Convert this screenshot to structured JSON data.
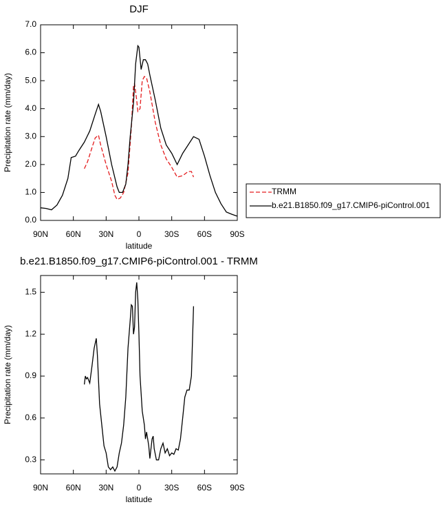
{
  "chart_data": [
    {
      "type": "line",
      "title": "DJF",
      "xlabel": "latitude",
      "ylabel": "Precipitation rate (mm/day)",
      "xlim": [
        90,
        -90
      ],
      "xticks": [
        {
          "value": 90,
          "label": "90N"
        },
        {
          "value": 60,
          "label": "60N"
        },
        {
          "value": 30,
          "label": "30N"
        },
        0,
        {
          "value": -30,
          "label": "30S"
        },
        {
          "value": -60,
          "label": "60S"
        },
        {
          "value": -90,
          "label": "90S"
        }
      ],
      "ylim": [
        0,
        7
      ],
      "yticks": [
        {
          "value": 0,
          "label": "0.0"
        },
        {
          "value": 1,
          "label": "1.0"
        },
        {
          "value": 2,
          "label": "2.0"
        },
        {
          "value": 3,
          "label": "3.0"
        },
        {
          "value": 4,
          "label": "4.0"
        },
        {
          "value": 5,
          "label": "5.0"
        },
        {
          "value": 6,
          "label": "6.0"
        },
        {
          "value": 7,
          "label": "7.0"
        }
      ],
      "legend": "right",
      "series": [
        {
          "name": "TRMM",
          "color": "#e41a1c",
          "line_style": "dashed",
          "x": [
            50,
            47,
            43,
            40,
            37,
            35,
            30,
            25,
            22,
            20,
            17,
            14,
            10,
            7,
            5,
            4,
            2,
            1,
            -1,
            -3,
            -5,
            -7,
            -10,
            -15,
            -20,
            -25,
            -30,
            -35,
            -40,
            -45,
            -48,
            -50
          ],
          "values": [
            1.85,
            2.1,
            2.6,
            2.95,
            3.05,
            2.7,
            2.0,
            1.4,
            0.9,
            0.75,
            0.8,
            1.0,
            1.7,
            3.3,
            4.8,
            4.9,
            4.3,
            3.9,
            4.0,
            5.0,
            5.15,
            5.1,
            4.6,
            3.5,
            2.7,
            2.2,
            1.9,
            1.55,
            1.6,
            1.75,
            1.75,
            1.55
          ]
        },
        {
          "name": "b.e21.B1850.f09_g17.CMIP6-piControl.001",
          "color": "#000000",
          "line_style": "solid",
          "x": [
            90,
            85,
            80,
            75,
            70,
            65,
            62,
            58,
            55,
            50,
            45,
            40,
            37,
            35,
            30,
            25,
            20,
            18,
            15,
            12,
            10,
            8,
            5,
            3,
            1,
            0,
            -2,
            -4,
            -6,
            -8,
            -10,
            -15,
            -20,
            -25,
            -30,
            -35,
            -40,
            -45,
            -50,
            -55,
            -60,
            -65,
            -70,
            -75,
            -80,
            -85,
            -90
          ],
          "values": [
            0.45,
            0.43,
            0.38,
            0.55,
            0.9,
            1.5,
            2.25,
            2.3,
            2.5,
            2.8,
            3.2,
            3.8,
            4.15,
            3.9,
            3.0,
            2.0,
            1.2,
            1.0,
            1.0,
            1.3,
            2.0,
            3.0,
            4.2,
            5.6,
            6.25,
            6.2,
            5.4,
            5.75,
            5.75,
            5.6,
            5.2,
            4.3,
            3.3,
            2.7,
            2.4,
            2.0,
            2.4,
            2.7,
            3.0,
            2.9,
            2.3,
            1.6,
            1.0,
            0.6,
            0.3,
            0.22,
            0.15
          ]
        }
      ]
    },
    {
      "type": "line",
      "title": "b.e21.B1850.f09_g17.CMIP6-piControl.001 - TRMM",
      "xlabel": "latitude",
      "ylabel": "Precipitation rate (mm/day)",
      "xlim": [
        90,
        -90
      ],
      "xticks": [
        {
          "value": 90,
          "label": "90N"
        },
        {
          "value": 60,
          "label": "60N"
        },
        {
          "value": 30,
          "label": "30N"
        },
        0,
        {
          "value": -30,
          "label": "30S"
        },
        {
          "value": -60,
          "label": "60S"
        },
        {
          "value": -90,
          "label": "90S"
        }
      ],
      "ylim": [
        0.2,
        1.62
      ],
      "yticks": [
        0.3,
        0.6,
        0.9,
        1.2,
        1.5
      ],
      "series": [
        {
          "color": "#000000",
          "line_style": "solid",
          "x": [
            50,
            49,
            48,
            47,
            45,
            43,
            41,
            39,
            38,
            36,
            34,
            32,
            30,
            28,
            26,
            24,
            22,
            20,
            18,
            16,
            14,
            12,
            10,
            8,
            7,
            6,
            5,
            4,
            3,
            2,
            1,
            0,
            -1,
            -3,
            -5,
            -6,
            -7,
            -9,
            -10,
            -12,
            -13,
            -14,
            -16,
            -18,
            -20,
            -22,
            -24,
            -26,
            -28,
            -30,
            -32,
            -34,
            -36,
            -38,
            -40,
            -42,
            -44,
            -46,
            -48,
            -50
          ],
          "values": [
            0.84,
            0.9,
            0.88,
            0.89,
            0.85,
            0.97,
            1.1,
            1.17,
            1.05,
            0.7,
            0.55,
            0.4,
            0.35,
            0.25,
            0.23,
            0.25,
            0.22,
            0.25,
            0.35,
            0.42,
            0.55,
            0.75,
            1.1,
            1.3,
            1.41,
            1.4,
            1.2,
            1.25,
            1.5,
            1.57,
            1.45,
            1.2,
            0.9,
            0.65,
            0.55,
            0.45,
            0.5,
            0.4,
            0.31,
            0.45,
            0.47,
            0.38,
            0.3,
            0.3,
            0.38,
            0.42,
            0.35,
            0.38,
            0.33,
            0.35,
            0.34,
            0.38,
            0.37,
            0.45,
            0.6,
            0.75,
            0.8,
            0.8,
            0.9,
            1.4
          ]
        }
      ]
    }
  ]
}
